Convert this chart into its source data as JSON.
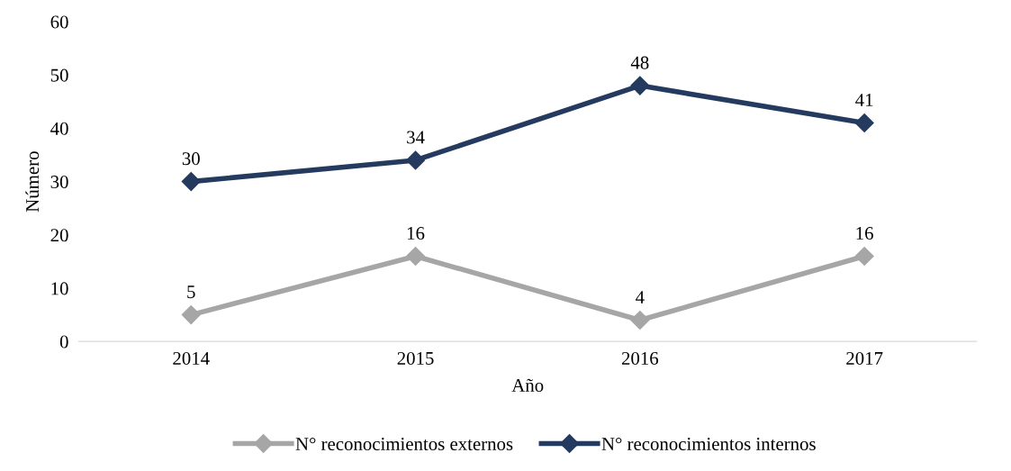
{
  "chart_data": {
    "type": "line",
    "xlabel": "Año",
    "ylabel": "Número",
    "categories": [
      "2014",
      "2015",
      "2016",
      "2017"
    ],
    "series": [
      {
        "name": "N° reconocimientos externos",
        "color": "#a6a6a6",
        "values": [
          5,
          16,
          4,
          16
        ]
      },
      {
        "name": "N° reconocimientos internos",
        "color": "#243a5e",
        "values": [
          30,
          34,
          48,
          41
        ]
      }
    ],
    "ylim": [
      0,
      60
    ],
    "yticks": [
      0,
      10,
      20,
      30,
      40,
      50,
      60
    ],
    "grid": false,
    "legend": "bottom",
    "marker": "diamond",
    "line_style": "solid",
    "data_labels": true
  }
}
